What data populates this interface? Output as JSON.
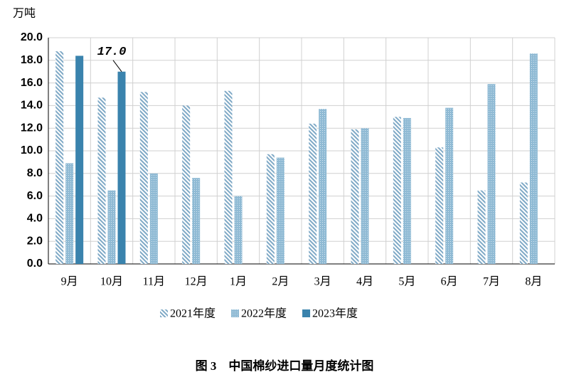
{
  "chart_data": {
    "type": "bar",
    "y_label": "万吨",
    "caption": "图 3　中国棉纱进口量月度统计图",
    "categories": [
      "9月",
      "10月",
      "11月",
      "12月",
      "1月",
      "2月",
      "3月",
      "4月",
      "5月",
      "6月",
      "7月",
      "8月"
    ],
    "series": [
      {
        "name": "2021年度",
        "color": "#7fa9c6",
        "fill": "hatch",
        "values": [
          18.8,
          14.7,
          15.2,
          14.0,
          15.3,
          9.7,
          12.4,
          11.9,
          13.0,
          10.3,
          6.5,
          7.2
        ]
      },
      {
        "name": "2022年度",
        "color": "#8fbad4",
        "fill": "dots",
        "values": [
          8.9,
          6.5,
          8.0,
          7.6,
          6.0,
          9.4,
          13.7,
          12.0,
          12.9,
          13.8,
          15.9,
          18.6
        ]
      },
      {
        "name": "2023年度",
        "color": "#3a83ad",
        "fill": "solid",
        "values": [
          18.4,
          17.0,
          null,
          null,
          null,
          null,
          null,
          null,
          null,
          null,
          null,
          null
        ],
        "value_labels": [
          null,
          "17.0",
          null,
          null,
          null,
          null,
          null,
          null,
          null,
          null,
          null,
          null
        ]
      }
    ],
    "ylim": [
      0,
      20
    ],
    "yticks": [
      {
        "value": 0,
        "label": "0.0"
      },
      {
        "value": 2,
        "label": "2.0"
      },
      {
        "value": 4,
        "label": "4.0"
      },
      {
        "value": 6,
        "label": "6.0"
      },
      {
        "value": 8,
        "label": "8.0"
      },
      {
        "value": 10,
        "label": "10.0"
      },
      {
        "value": 12,
        "label": "12.0"
      },
      {
        "value": 14,
        "label": "14.0"
      },
      {
        "value": 16,
        "label": "16.0"
      },
      {
        "value": 18,
        "label": "18.0"
      },
      {
        "value": 20,
        "label": "20.0"
      }
    ],
    "grid": true,
    "legend": "bottom"
  }
}
